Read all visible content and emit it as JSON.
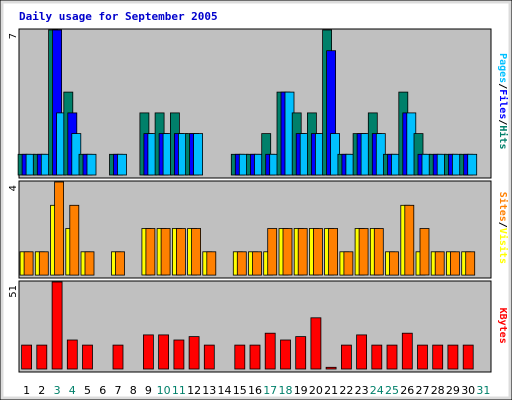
{
  "chart_data": {
    "type": "bar",
    "title": "Daily usage for September 2005",
    "days": [
      "1",
      "2",
      "3",
      "4",
      "5",
      "6",
      "7",
      "8",
      "9",
      "10",
      "11",
      "12",
      "13",
      "14",
      "15",
      "16",
      "17",
      "18",
      "19",
      "20",
      "21",
      "22",
      "23",
      "24",
      "25",
      "26",
      "27",
      "28",
      "29",
      "30",
      "31"
    ],
    "weekend_days": [
      "3",
      "4",
      "10",
      "11",
      "17",
      "18",
      "24",
      "25",
      "31"
    ],
    "panels": [
      {
        "ymax": 7,
        "ymax_label": "7",
        "legend": [
          "Pages",
          "/",
          "Files",
          "/",
          "Hits"
        ],
        "legend_colors": [
          "#00c0ff",
          "#000000",
          "#0000ff",
          "#000000",
          "#00806a"
        ],
        "series": [
          {
            "name": "Hits",
            "color": "#00806a",
            "values": [
              1,
              1,
              7,
              4,
              1,
              0,
              1,
              0,
              3,
              3,
              3,
              2,
              0,
              0,
              1,
              1,
              2,
              4,
              3,
              3,
              7,
              1,
              2,
              3,
              1,
              4,
              2,
              1,
              1,
              1,
              0
            ]
          },
          {
            "name": "Files",
            "color": "#0000ff",
            "values": [
              1,
              1,
              7,
              3,
              1,
              0,
              1,
              0,
              2,
              2,
              2,
              2,
              0,
              0,
              1,
              1,
              1,
              4,
              2,
              2,
              6,
              1,
              2,
              2,
              1,
              3,
              1,
              1,
              1,
              1,
              0
            ]
          },
          {
            "name": "Pages",
            "color": "#00c0ff",
            "values": [
              1,
              1,
              3,
              2,
              1,
              0,
              1,
              0,
              2,
              2,
              2,
              2,
              0,
              0,
              1,
              1,
              1,
              4,
              2,
              2,
              2,
              1,
              2,
              2,
              1,
              3,
              1,
              1,
              1,
              1,
              0
            ]
          }
        ]
      },
      {
        "ymax": 4,
        "ymax_label": "4",
        "legend": [
          "Sites",
          "/",
          "Visits"
        ],
        "legend_colors": [
          "#ff8000",
          "#000000",
          "#ffff00"
        ],
        "series": [
          {
            "name": "Visits",
            "color": "#ffff00",
            "values": [
              1,
              1,
              3,
              2,
              1,
              0,
              1,
              0,
              2,
              2,
              2,
              2,
              1,
              0,
              1,
              1,
              1,
              2,
              2,
              2,
              2,
              1,
              2,
              2,
              1,
              3,
              1,
              1,
              1,
              1,
              0
            ]
          },
          {
            "name": "Sites",
            "color": "#ff8000",
            "values": [
              1,
              1,
              4,
              3,
              1,
              0,
              1,
              0,
              2,
              2,
              2,
              2,
              1,
              0,
              1,
              1,
              2,
              2,
              2,
              2,
              2,
              1,
              2,
              2,
              1,
              3,
              2,
              1,
              1,
              1,
              0
            ]
          }
        ]
      },
      {
        "ymax": 51,
        "ymax_label": "51",
        "legend": [
          "KBytes"
        ],
        "legend_colors": [
          "#ff0000"
        ],
        "series": [
          {
            "name": "KBytes",
            "color": "#ff0000",
            "values": [
              14,
              14,
              51,
              17,
              14,
              0,
              14,
              0,
              20,
              20,
              17,
              19,
              14,
              0,
              14,
              14,
              21,
              17,
              19,
              30,
              1,
              14,
              20,
              14,
              14,
              21,
              14,
              14,
              14,
              14,
              0
            ]
          }
        ]
      }
    ]
  }
}
